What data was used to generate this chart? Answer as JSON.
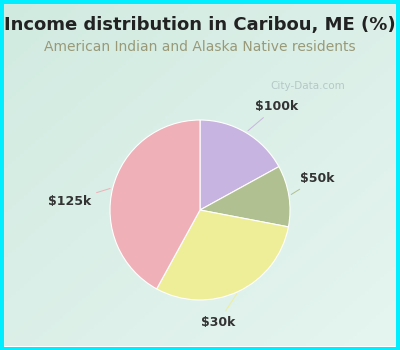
{
  "title": "Income distribution in Caribou, ME (%)",
  "subtitle": "American Indian and Alaska Native residents",
  "title_color": "#222222",
  "subtitle_color": "#999977",
  "bg_color_outer": "#00eeff",
  "bg_color_inner_tl": "#d8ede6",
  "bg_color_inner_br": "#e8f5ee",
  "slices": [
    {
      "label": "$100k",
      "value": 17,
      "color": "#c8b4e0"
    },
    {
      "label": "$50k",
      "value": 11,
      "color": "#b0c090"
    },
    {
      "label": "$30k",
      "value": 30,
      "color": "#eeee99"
    },
    {
      "label": "$125k",
      "value": 42,
      "color": "#f0b0b8"
    }
  ],
  "label_fontsize": 9,
  "title_fontsize": 13,
  "subtitle_fontsize": 10,
  "watermark": "City-Data.com",
  "watermark_color": "#aabbbb",
  "label_color": "#333333"
}
